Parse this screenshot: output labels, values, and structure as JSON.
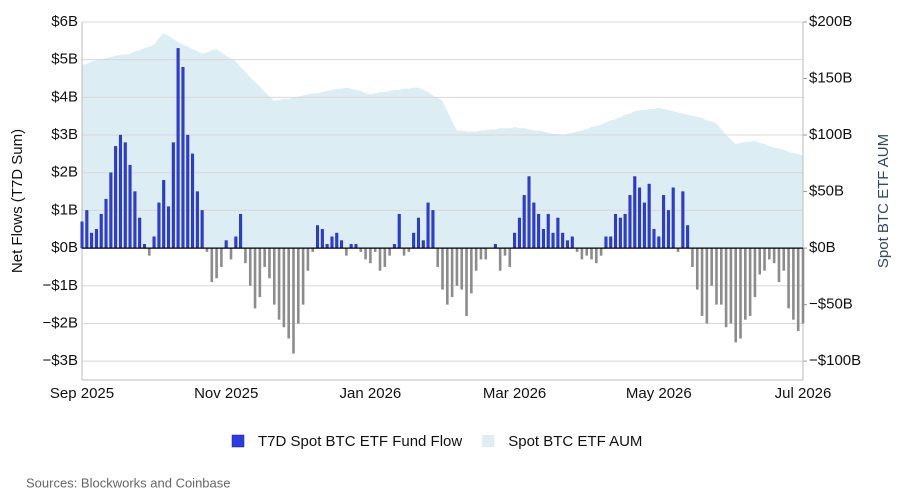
{
  "chart_data": {
    "type": "bar",
    "y_label": "Net Flows (T7D Sum)",
    "y2_label": "Spot BTC ETF AUM",
    "source": "Sources: Blockworks and Coinbase",
    "categories": [
      "Sep 2025",
      null,
      null,
      null,
      null,
      null,
      null,
      null,
      null,
      null,
      null,
      null,
      null,
      null,
      null,
      null,
      null,
      null,
      null,
      null,
      null,
      null,
      null,
      null,
      null,
      null,
      null,
      null,
      null,
      null,
      "Nov 2025",
      null,
      null,
      null,
      null,
      null,
      null,
      null,
      null,
      null,
      null,
      null,
      null,
      null,
      null,
      null,
      null,
      null,
      null,
      null,
      null,
      null,
      null,
      null,
      null,
      null,
      null,
      null,
      null,
      null,
      "Jan 2026",
      null,
      null,
      null,
      null,
      null,
      null,
      null,
      null,
      null,
      null,
      null,
      null,
      null,
      null,
      null,
      null,
      null,
      null,
      null,
      null,
      null,
      null,
      null,
      null,
      null,
      null,
      null,
      null,
      null,
      "Mar 2026",
      null,
      null,
      null,
      null,
      null,
      null,
      null,
      null,
      null,
      null,
      null,
      null,
      null,
      null,
      null,
      null,
      null,
      null,
      null,
      null,
      null,
      null,
      null,
      null,
      null,
      null,
      null,
      null,
      null,
      "May 2026",
      null,
      null,
      null,
      null,
      null,
      null,
      null,
      null,
      null,
      null,
      null,
      null,
      null,
      null,
      null,
      null,
      null,
      null,
      null,
      null,
      null,
      null,
      null,
      null,
      null,
      null,
      null,
      null,
      null,
      "Jul 2026"
    ],
    "series": [
      {
        "name": "T7D Spot BTC ETF Fund Flow",
        "type": "bar",
        "color": "#2b3ce6",
        "negative_color": "#8c8c8c",
        "values": [
          0.7,
          1.0,
          0.4,
          0.5,
          0.9,
          1.3,
          2.0,
          2.7,
          3.0,
          2.8,
          2.2,
          1.5,
          0.8,
          0.1,
          -0.2,
          0.3,
          1.2,
          1.8,
          1.1,
          2.8,
          5.3,
          4.8,
          3.0,
          2.5,
          1.5,
          1.0,
          -0.1,
          -0.9,
          -0.8,
          -0.5,
          0.2,
          -0.3,
          0.3,
          0.9,
          -0.4,
          -1.0,
          -1.6,
          -1.3,
          -0.5,
          -0.8,
          -1.5,
          -1.9,
          -2.1,
          -2.4,
          -2.8,
          -2.0,
          -1.5,
          -0.6,
          -0.1,
          0.6,
          0.5,
          0.1,
          0.3,
          0.4,
          0.2,
          -0.2,
          0.1,
          0.1,
          -0.1,
          -0.3,
          -0.4,
          -0.1,
          -0.6,
          -0.5,
          -0.2,
          0.1,
          0.9,
          -0.2,
          -0.1,
          0.4,
          0.8,
          0.2,
          1.2,
          1.0,
          -0.5,
          -1.1,
          -1.5,
          -1.3,
          -1.0,
          -1.1,
          -1.8,
          -1.2,
          -0.6,
          -0.3,
          -0.3,
          0.0,
          0.1,
          -0.6,
          -0.2,
          -0.5,
          0.4,
          0.8,
          1.4,
          1.9,
          1.2,
          0.9,
          0.5,
          0.9,
          0.4,
          0.8,
          0.4,
          0.2,
          0.3,
          -0.1,
          -0.3,
          -0.2,
          -0.3,
          -0.4,
          -0.2,
          0.3,
          0.3,
          0.9,
          0.8,
          0.9,
          1.4,
          1.9,
          1.6,
          1.2,
          1.7,
          0.5,
          0.3,
          1.4,
          1.0,
          1.6,
          -0.1,
          1.5,
          0.6,
          -0.5,
          -1.1,
          -1.8,
          -2.0,
          -1.0,
          -1.5,
          -1.5,
          -2.1,
          -2.0,
          -2.5,
          -2.4,
          -1.9,
          -1.8,
          -1.3,
          -0.7,
          -0.6,
          -0.3,
          -0.4,
          -0.9,
          -0.6,
          -1.6,
          -1.9,
          -2.2,
          -2.0
        ]
      },
      {
        "name": "Spot BTC ETF AUM",
        "type": "area",
        "axis": "y2",
        "color": "#dcedf4",
        "values": [
          162,
          163,
          165,
          166,
          167,
          168,
          169,
          170,
          171,
          171,
          172,
          174,
          175,
          177,
          178,
          180,
          186,
          190,
          188,
          185,
          182,
          180,
          178,
          176,
          174,
          172,
          173,
          175,
          176,
          173,
          170,
          168,
          165,
          160,
          156,
          151,
          147,
          143,
          138,
          134,
          130,
          131,
          132,
          132,
          133,
          134,
          135,
          136,
          137,
          137,
          138,
          139,
          140,
          141,
          141,
          142,
          141,
          140,
          139,
          137,
          136,
          137,
          138,
          138,
          139,
          140,
          140,
          141,
          141,
          142,
          142,
          140,
          138,
          135,
          133,
          130,
          121,
          112,
          104,
          104,
          103,
          103,
          103,
          104,
          104,
          105,
          105,
          106,
          106,
          106,
          107,
          106,
          106,
          105,
          104,
          104,
          103,
          102,
          101,
          101,
          100,
          101,
          102,
          103,
          104,
          105,
          107,
          108,
          109,
          111,
          113,
          114,
          116,
          118,
          119,
          121,
          122,
          122,
          123,
          123,
          124,
          123,
          122,
          121,
          120,
          119,
          118,
          117,
          116,
          115,
          113,
          112,
          110,
          105,
          100,
          96,
          92,
          93,
          94,
          94,
          95,
          93,
          92,
          90,
          89,
          88,
          87,
          85,
          84,
          83,
          82
        ]
      }
    ],
    "ylim": [
      -3.5,
      6
    ],
    "yticks": [
      {
        "value": -3,
        "label": "−$3B"
      },
      {
        "value": -2,
        "label": "−$2B"
      },
      {
        "value": -1,
        "label": "−$1B"
      },
      {
        "value": 0,
        "label": "$0B"
      },
      {
        "value": 1,
        "label": "$1B"
      },
      {
        "value": 2,
        "label": "$2B"
      },
      {
        "value": 3,
        "label": "$3B"
      },
      {
        "value": 4,
        "label": "$4B"
      },
      {
        "value": 5,
        "label": "$5B"
      },
      {
        "value": 6,
        "label": "$6B"
      }
    ],
    "y2lim": [
      -116.7,
      200
    ],
    "y2ticks": [
      {
        "value": -100,
        "label": "−$100B"
      },
      {
        "value": -50,
        "label": "−$50B"
      },
      {
        "value": 0,
        "label": "$0B"
      },
      {
        "value": 50,
        "label": "$50B"
      },
      {
        "value": 100,
        "label": "$100B"
      },
      {
        "value": 150,
        "label": "$150B"
      },
      {
        "value": 200,
        "label": "$200B"
      }
    ],
    "grid": true,
    "legend": "bottom"
  }
}
